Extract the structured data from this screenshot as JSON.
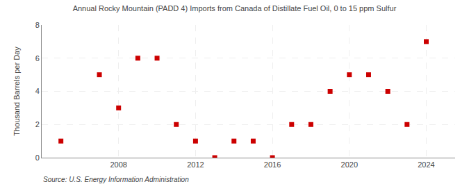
{
  "chart_data": {
    "type": "scatter",
    "title": "Annual Rocky Mountain (PADD 4) Imports from Canada of Distillate Fuel Oil, 0 to 15 ppm Sulfur",
    "y_label": "Thousand Barrels per Day",
    "annotations": [
      "Source: U.S. Energy Information Administration"
    ],
    "x": [
      2005,
      2007,
      2008,
      2009,
      2010,
      2011,
      2012,
      2013,
      2014,
      2015,
      2016,
      2017,
      2018,
      2019,
      2020,
      2021,
      2022,
      2023,
      2024
    ],
    "values": [
      1,
      5,
      3,
      6,
      6,
      2,
      1,
      0,
      1,
      1,
      0,
      2,
      2,
      4,
      5,
      5,
      4,
      2,
      7
    ],
    "color": "#cc0000",
    "marker": "square",
    "xlim": [
      2004,
      2025.5
    ],
    "ylim": [
      0,
      8
    ],
    "xticks": [
      2008,
      2012,
      2016,
      2020,
      2024
    ],
    "yticks": [
      0,
      2,
      4,
      6,
      8
    ],
    "grid": true
  }
}
